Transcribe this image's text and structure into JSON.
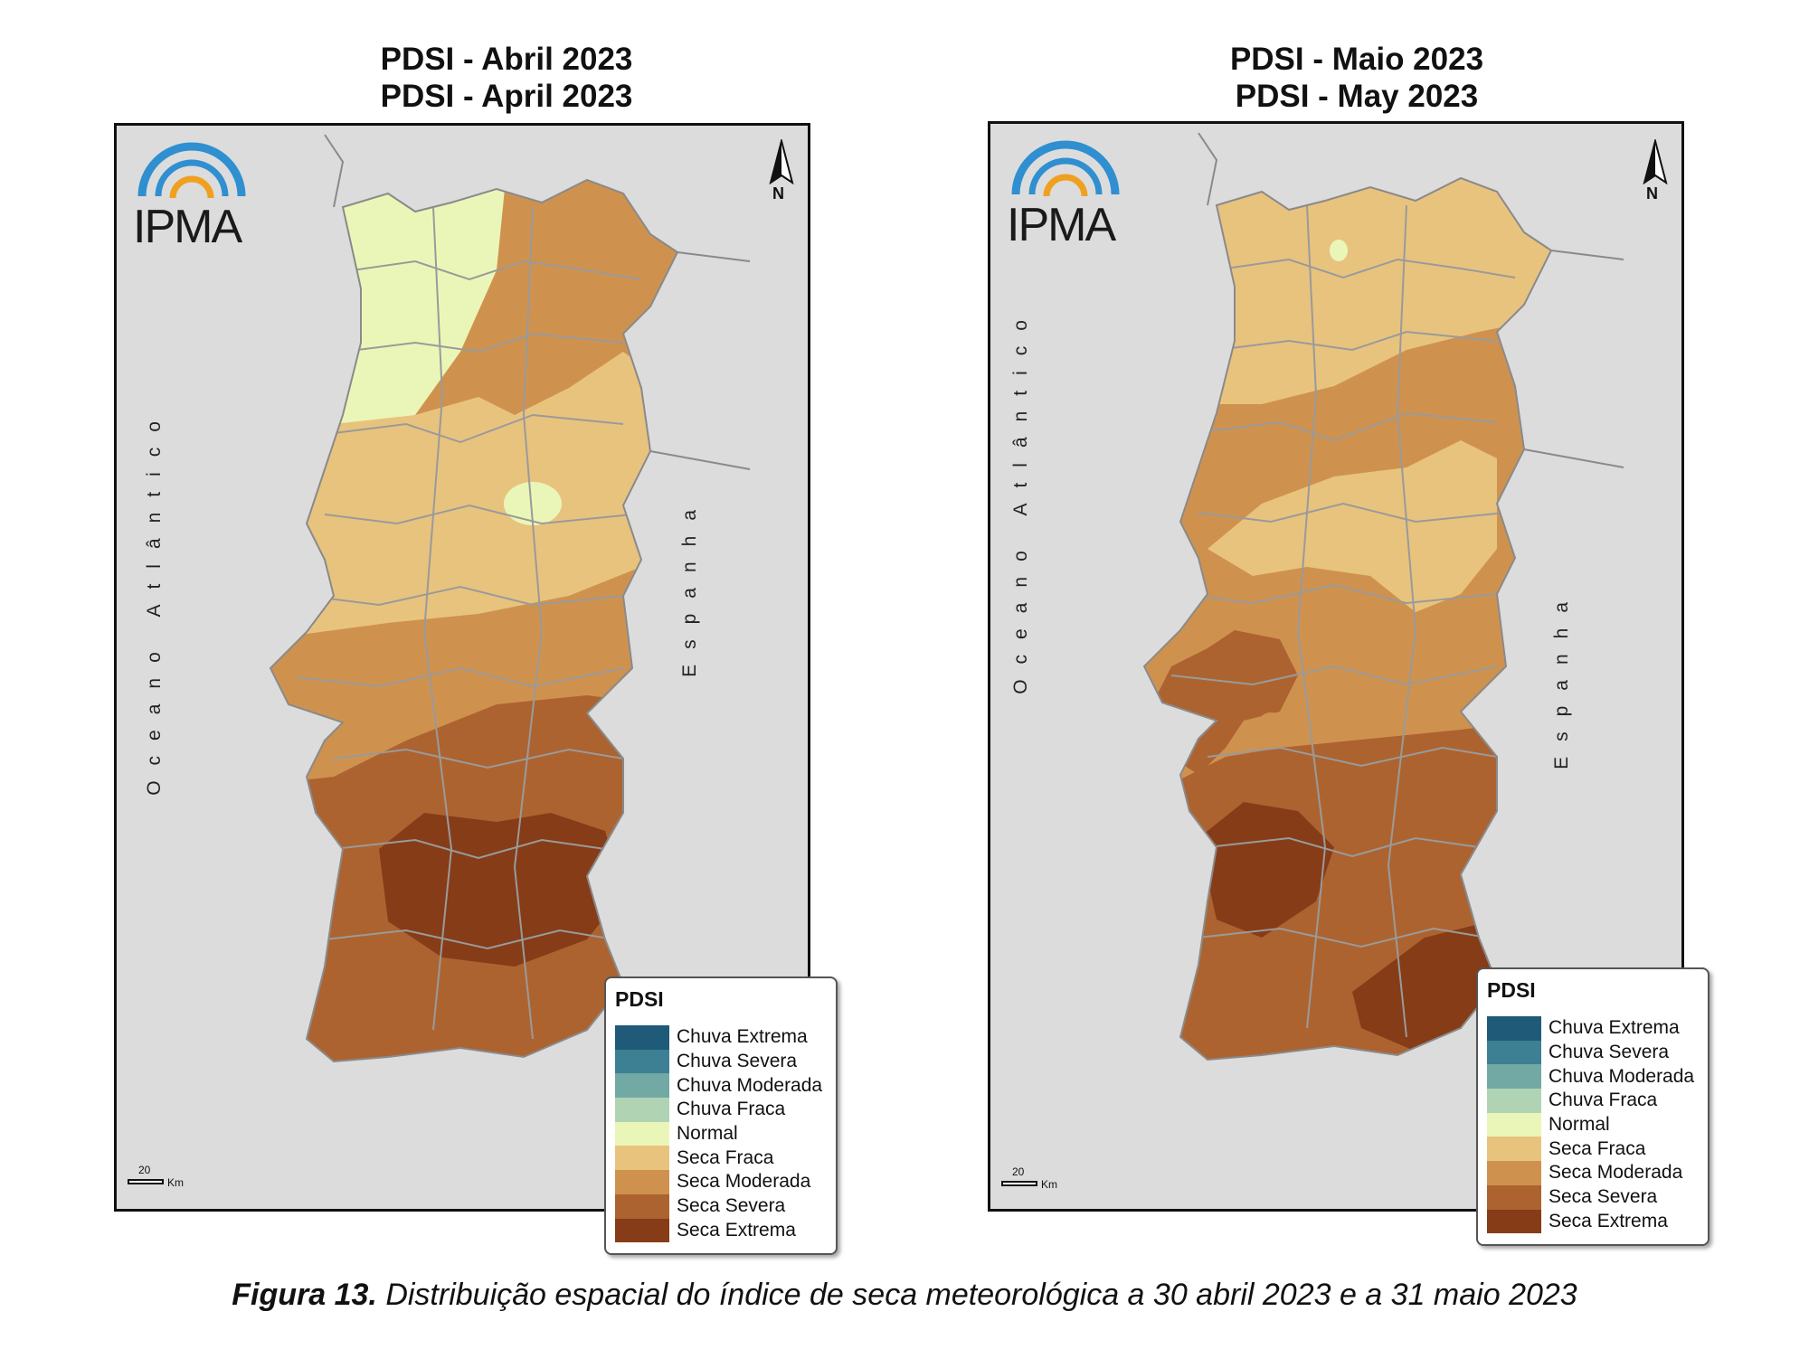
{
  "maps": [
    {
      "title_line1": "PDSI - Abril 2023",
      "title_line2": "PDSI - April 2023",
      "logo_text": "IPMA",
      "north_label": "N",
      "ocean_label": "Oceano Atlântico",
      "spain_label": "Espanha",
      "scale_value": "20",
      "scale_unit": "Km",
      "legend_title": "PDSI",
      "zones": [
        {
          "region": "norte-litoral",
          "class": "Normal"
        },
        {
          "region": "norte-interior",
          "class": "Seca Moderada"
        },
        {
          "region": "centro",
          "class": "Seca Fraca"
        },
        {
          "region": "lisboa-ribatejo",
          "class": "Seca Moderada"
        },
        {
          "region": "alentejo",
          "class": "Seca Severa"
        },
        {
          "region": "baixo-alentejo",
          "class": "Seca Extrema"
        },
        {
          "region": "algarve",
          "class": "Seca Severa"
        }
      ]
    },
    {
      "title_line1": "PDSI - Maio 2023",
      "title_line2": "PDSI - May 2023",
      "logo_text": "IPMA",
      "north_label": "N",
      "ocean_label": "Oceano Atlântico",
      "spain_label": "Espanha",
      "scale_value": "20",
      "scale_unit": "Km",
      "legend_title": "PDSI",
      "zones": [
        {
          "region": "norte",
          "class": "Seca Fraca"
        },
        {
          "region": "centro",
          "class": "Seca Moderada"
        },
        {
          "region": "beira-interior",
          "class": "Seca Fraca"
        },
        {
          "region": "lisboa",
          "class": "Seca Severa"
        },
        {
          "region": "alentejo",
          "class": "Seca Severa"
        },
        {
          "region": "baixo-alentejo",
          "class": "Seca Extrema"
        },
        {
          "region": "algarve-leste",
          "class": "Seca Extrema"
        }
      ]
    }
  ],
  "legend_items": [
    {
      "label": "Chuva Extrema",
      "color": "#1f5a78"
    },
    {
      "label": "Chuva Severa",
      "color": "#3d7f93"
    },
    {
      "label": "Chuva Moderada",
      "color": "#72a9a5"
    },
    {
      "label": "Chuva Fraca",
      "color": "#b0d4b3"
    },
    {
      "label": "Normal",
      "color": "#eaf6b8"
    },
    {
      "label": "Seca Fraca",
      "color": "#e8c37e"
    },
    {
      "label": "Seca Moderada",
      "color": "#cf924e"
    },
    {
      "label": "Seca Severa",
      "color": "#ad6330"
    },
    {
      "label": "Seca Extrema",
      "color": "#863c17"
    }
  ],
  "colors": {
    "background_land_spain": "#dcdcdc",
    "logo_blue": "#2f8fd0",
    "logo_orange": "#f0a020",
    "border_gray": "#9a9a9a"
  },
  "caption": {
    "label": "Figura 13.",
    "text": " Distribuição espacial do índice de seca meteorológica a 30 abril 2023 e a 31 maio 2023"
  }
}
